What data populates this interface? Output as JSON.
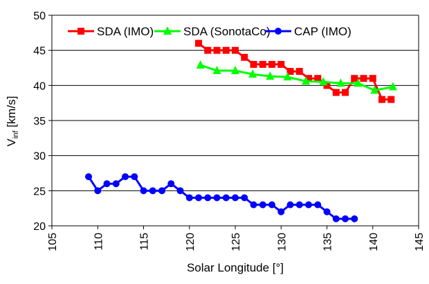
{
  "chart_data": {
    "type": "line",
    "title": "",
    "xlabel": "Solar Longitude [°]",
    "ylabel_main": "V",
    "ylabel_sub": "inf",
    "ylabel_rest": " [km/s]",
    "xlim": [
      105,
      145
    ],
    "ylim": [
      20,
      50
    ],
    "xticks": [
      105,
      110,
      115,
      120,
      125,
      130,
      135,
      140,
      145
    ],
    "yticks": [
      20,
      25,
      30,
      35,
      40,
      45,
      50
    ],
    "grid": "horizontal",
    "legend_position": "top",
    "series": [
      {
        "name": "SDA (IMO)",
        "color": "#ff0000",
        "marker": "square",
        "x": [
          121,
          122,
          123,
          124,
          125,
          126,
          127,
          128,
          129,
          130,
          131,
          132,
          133,
          134,
          135,
          136,
          137,
          138,
          139,
          140,
          141,
          142
        ],
        "y": [
          46,
          45,
          45,
          45,
          45,
          44,
          43,
          43,
          43,
          43,
          42,
          42,
          41,
          41,
          40,
          39,
          39,
          41,
          41,
          41,
          38,
          38
        ]
      },
      {
        "name": "SDA (SonotaCo)",
        "color": "#00ff00",
        "marker": "triangle",
        "x": [
          121.2,
          123.0,
          125.0,
          126.9,
          128.8,
          130.7,
          132.7,
          134.6,
          136.5,
          138.4,
          140.2,
          142.2
        ],
        "y": [
          42.9,
          42.1,
          42.1,
          41.6,
          41.3,
          41.2,
          40.6,
          40.5,
          40.3,
          40.3,
          39.3,
          39.8
        ]
      },
      {
        "name": "CAP (IMO)",
        "color": "#0000ff",
        "marker": "circle",
        "x": [
          109,
          110,
          111,
          112,
          113,
          114,
          115,
          116,
          117,
          118,
          119,
          120,
          121,
          122,
          123,
          124,
          125,
          126,
          127,
          128,
          129,
          130,
          131,
          132,
          133,
          134,
          135,
          136,
          137,
          138
        ],
        "y": [
          27,
          25,
          26,
          26,
          27,
          27,
          25,
          25,
          25,
          26,
          25,
          24,
          24,
          24,
          24,
          24,
          24,
          24,
          23,
          23,
          23,
          22,
          23,
          23,
          23,
          23,
          22,
          21,
          21,
          21
        ]
      }
    ]
  }
}
